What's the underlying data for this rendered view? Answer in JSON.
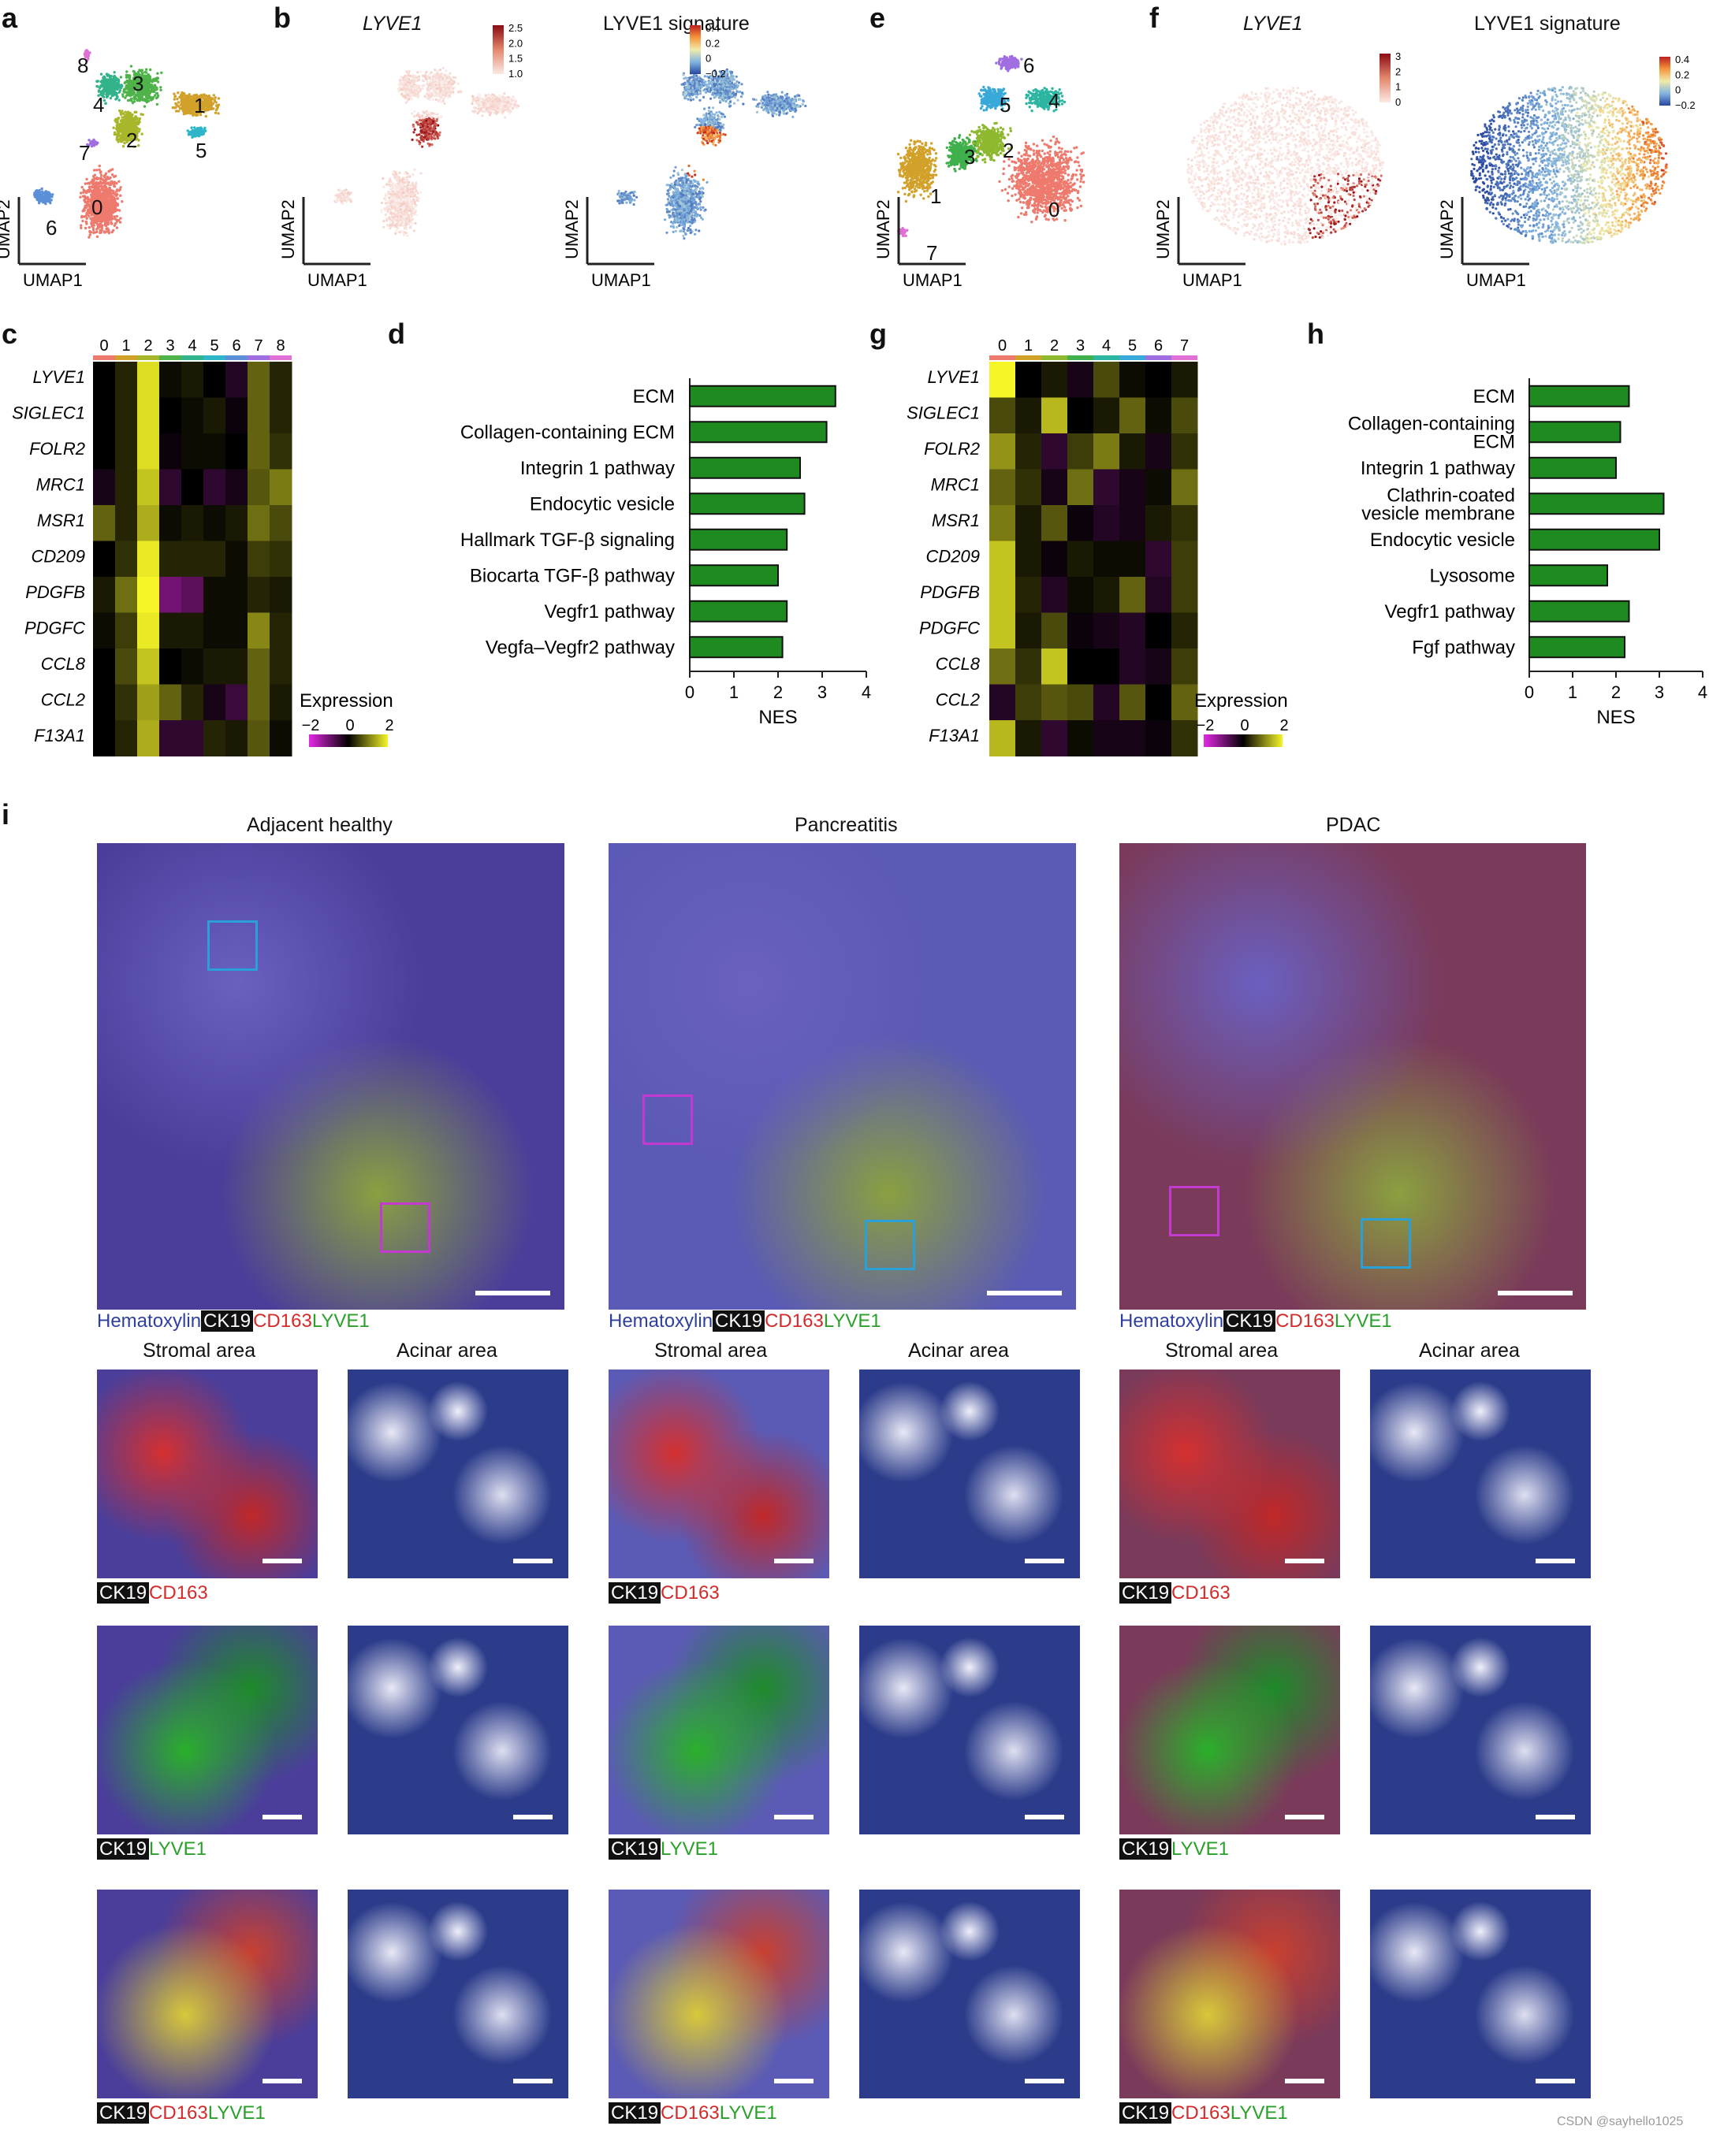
{
  "panel_letters": [
    "a",
    "b",
    "c",
    "d",
    "e",
    "f",
    "g",
    "h",
    "i"
  ],
  "umap_axes": {
    "x": "UMAP1",
    "y": "UMAP2"
  },
  "umap_a": {
    "clusters": [
      {
        "label": "0",
        "color": "#ee7a6e"
      },
      {
        "label": "1",
        "color": "#d2a12a"
      },
      {
        "label": "2",
        "color": "#a8b62b"
      },
      {
        "label": "3",
        "color": "#4fb34a"
      },
      {
        "label": "4",
        "color": "#33b38b"
      },
      {
        "label": "5",
        "color": "#2eb5c9"
      },
      {
        "label": "6",
        "color": "#5b8fd8"
      },
      {
        "label": "7",
        "color": "#a06ee0"
      },
      {
        "label": "8",
        "color": "#e070d6"
      }
    ]
  },
  "umap_e": {
    "clusters": [
      {
        "label": "0",
        "color": "#ee7a6e"
      },
      {
        "label": "1",
        "color": "#d2a12a"
      },
      {
        "label": "2",
        "color": "#8eb82f"
      },
      {
        "label": "3",
        "color": "#3fb04b"
      },
      {
        "label": "4",
        "color": "#2cb5a0"
      },
      {
        "label": "5",
        "color": "#38a9d9"
      },
      {
        "label": "6",
        "color": "#a06ee0"
      },
      {
        "label": "7",
        "color": "#e070d6"
      }
    ]
  },
  "feature_b": {
    "title_gene": "LYVE1",
    "title_sig": "LYVE1 signature",
    "gene_ticks": [
      "2.5",
      "2.0",
      "1.5",
      "1.0"
    ],
    "sig_ticks": [
      "0.4",
      "0.2",
      "0",
      "−0.2"
    ]
  },
  "feature_f": {
    "title_gene": "LYVE1",
    "title_sig": "LYVE1 signature",
    "gene_ticks": [
      "3",
      "2",
      "1",
      "0"
    ],
    "sig_ticks": [
      "0.4",
      "0.2",
      "0",
      "−0.2"
    ]
  },
  "heatmap_legend": {
    "title": "Expression",
    "ticks": [
      "−2",
      "0",
      "2"
    ]
  },
  "chart_data": [
    {
      "type": "heatmap",
      "panel": "c",
      "columns": [
        "0",
        "1",
        "2",
        "3",
        "4",
        "5",
        "6",
        "7",
        "8"
      ],
      "column_colors": [
        "#ee7a6e",
        "#d2a12a",
        "#a8b62b",
        "#4fb34a",
        "#33b38b",
        "#2eb5c9",
        "#5b8fd8",
        "#a06ee0",
        "#e070d6"
      ],
      "rows": [
        "LYVE1",
        "SIGLEC1",
        "FOLR2",
        "MRC1",
        "MSR1",
        "CD209",
        "PDGFB",
        "PDGFC",
        "CCL8",
        "CCL2",
        "F13A1"
      ],
      "values": [
        [
          0.0,
          0.3,
          1.8,
          0.1,
          0.2,
          0.0,
          -0.3,
          0.8,
          0.3
        ],
        [
          0.0,
          0.3,
          1.8,
          0.0,
          0.1,
          0.2,
          -0.1,
          0.8,
          0.3
        ],
        [
          0.0,
          0.3,
          1.8,
          -0.1,
          0.1,
          0.1,
          0.0,
          0.8,
          0.4
        ],
        [
          -0.2,
          0.3,
          1.6,
          -0.4,
          0.0,
          -0.4,
          -0.2,
          0.7,
          1.0
        ],
        [
          0.8,
          0.3,
          1.4,
          0.1,
          0.2,
          0.1,
          0.2,
          0.9,
          0.6
        ],
        [
          0.0,
          0.4,
          1.9,
          0.3,
          0.3,
          0.3,
          0.1,
          0.5,
          0.4
        ],
        [
          0.2,
          0.9,
          2.0,
          -1.0,
          -0.8,
          0.1,
          0.1,
          0.3,
          0.2
        ],
        [
          0.1,
          0.5,
          1.9,
          0.2,
          0.2,
          0.1,
          0.1,
          1.1,
          0.3
        ],
        [
          0.0,
          0.6,
          1.6,
          0.0,
          0.1,
          0.2,
          0.2,
          0.8,
          0.3
        ],
        [
          0.0,
          0.4,
          1.3,
          0.8,
          0.3,
          -0.2,
          -0.5,
          0.8,
          0.2
        ],
        [
          0.0,
          0.3,
          1.4,
          -0.4,
          -0.4,
          0.3,
          0.2,
          0.7,
          0.1
        ]
      ],
      "colorbar": {
        "min": -2,
        "max": 2
      }
    },
    {
      "type": "bar",
      "panel": "d",
      "orientation": "horizontal",
      "categories": [
        "ECM",
        "Collagen-containing ECM",
        "Integrin 1 pathway",
        "Endocytic vesicle",
        "Hallmark TGF-β signaling",
        "Biocarta TGF-β pathway",
        "Vegfr1 pathway",
        "Vegfa–Vegfr2 pathway"
      ],
      "values": [
        3.3,
        3.1,
        2.5,
        2.6,
        2.2,
        2.0,
        2.2,
        2.1
      ],
      "xlabel": "NES",
      "xlim": [
        0,
        4
      ],
      "xticks": [
        "0",
        "1",
        "2",
        "3",
        "4"
      ],
      "bar_color": "#1f8a1f"
    },
    {
      "type": "heatmap",
      "panel": "g",
      "columns": [
        "0",
        "1",
        "2",
        "3",
        "4",
        "5",
        "6",
        "7"
      ],
      "column_colors": [
        "#ee7a6e",
        "#d2a12a",
        "#8eb82f",
        "#3fb04b",
        "#2cb5a0",
        "#38a9d9",
        "#a06ee0",
        "#e070d6"
      ],
      "rows": [
        "LYVE1",
        "SIGLEC1",
        "FOLR2",
        "MRC1",
        "MSR1",
        "CD209",
        "PDGFB",
        "PDGFC",
        "CCL8",
        "CCL2",
        "F13A1"
      ],
      "values": [
        [
          2.0,
          0.0,
          0.2,
          -0.2,
          0.6,
          0.1,
          0.0,
          0.2
        ],
        [
          0.6,
          0.2,
          1.5,
          0.0,
          0.2,
          0.8,
          0.1,
          0.6
        ],
        [
          1.2,
          0.3,
          -0.4,
          0.5,
          1.0,
          0.2,
          -0.2,
          0.4
        ],
        [
          0.8,
          0.4,
          -0.2,
          0.9,
          -0.4,
          -0.2,
          0.1,
          0.9
        ],
        [
          1.0,
          0.2,
          0.7,
          -0.1,
          -0.3,
          -0.2,
          0.2,
          0.4
        ],
        [
          1.6,
          0.2,
          -0.1,
          0.2,
          0.1,
          0.1,
          -0.4,
          0.5
        ],
        [
          1.6,
          0.3,
          -0.3,
          0.1,
          0.2,
          0.8,
          -0.3,
          0.5
        ],
        [
          1.6,
          0.2,
          0.6,
          -0.1,
          -0.2,
          -0.3,
          0.0,
          0.3
        ],
        [
          0.9,
          0.4,
          1.6,
          0.0,
          0.0,
          -0.3,
          -0.2,
          0.5
        ],
        [
          -0.3,
          0.5,
          0.7,
          0.6,
          -0.3,
          0.7,
          0.0,
          0.8
        ],
        [
          1.5,
          0.2,
          -0.4,
          0.1,
          -0.2,
          -0.2,
          -0.1,
          0.4
        ]
      ],
      "colorbar": {
        "min": -2,
        "max": 2
      }
    },
    {
      "type": "bar",
      "panel": "h",
      "orientation": "horizontal",
      "categories": [
        "ECM",
        "Collagen-containing ECM",
        "Integrin 1 pathway",
        "Clathrin-coated vesicle membrane",
        "Endocytic vesicle",
        "Lysosome",
        "Vegfr1 pathway",
        "Fgf pathway"
      ],
      "values": [
        2.3,
        2.1,
        2.0,
        3.1,
        3.0,
        1.8,
        2.3,
        2.2
      ],
      "xlabel": "NES",
      "xlim": [
        0,
        4
      ],
      "xticks": [
        "0",
        "1",
        "2",
        "3",
        "4"
      ],
      "bar_color": "#1f8a1f"
    }
  ],
  "panel_i": {
    "columns": [
      {
        "title": "Adjacent healthy",
        "base": "#4a3e9a",
        "accent": "#c8e04a"
      },
      {
        "title": "Pancreatitis",
        "base": "#5b5ab4",
        "accent": "#c04040"
      },
      {
        "title": "PDAC",
        "base": "#7a3a5a",
        "accent": "#d06a40"
      }
    ],
    "stain_legend": {
      "hematoxylin": "Hematoxylin",
      "ck19": "CK19",
      "cd163": "CD163",
      "lyve1": "LYVE1"
    },
    "subpanel_titles": {
      "stromal": "Stromal area",
      "acinar": "Acinar area"
    },
    "colors": {
      "hematoxylin": "#2f3fa0",
      "cd163": "#d42a2a",
      "lyve1": "#2aa02a",
      "box_magenta": "#c43ad0",
      "box_cyan": "#2aa0d8"
    }
  },
  "watermark": "CSDN @sayhello1025"
}
